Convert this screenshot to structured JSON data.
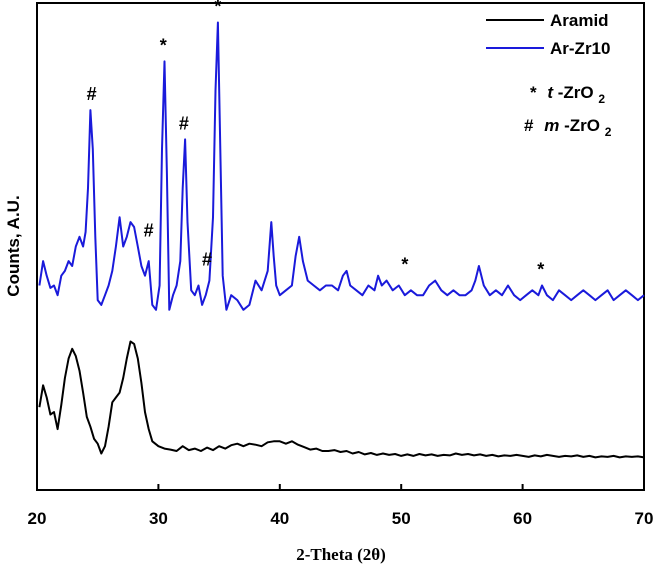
{
  "chart_data": {
    "type": "line",
    "xlabel": "2-Theta (2θ)",
    "ylabel": "Counts, A.U.",
    "xlim": [
      20,
      70
    ],
    "xticks": [
      "20",
      "30",
      "40",
      "50",
      "60",
      "70"
    ],
    "ylim": [
      0,
      1
    ],
    "y_ticks_shown": false,
    "grid": false,
    "legend_position": "top-right",
    "colors": {
      "Aramid": "#000000",
      "Ar-Zr10": "#1a1adb"
    },
    "legend": [
      {
        "kind": "line",
        "name": "Aramid",
        "color": "#000000"
      },
      {
        "kind": "line",
        "name": "Ar-Zr10",
        "color": "#1a1adb"
      },
      {
        "kind": "text",
        "symbol": "*",
        "phase_prefix": "t",
        "phase_text": "-ZrO",
        "phase_sub": "2"
      },
      {
        "kind": "text",
        "symbol": "#",
        "phase_prefix": "m",
        "phase_text": "-ZrO",
        "phase_sub": "2"
      }
    ],
    "series": [
      {
        "name": "Aramid",
        "x": [
          20.2,
          20.5,
          20.8,
          21.1,
          21.4,
          21.7,
          22.0,
          22.3,
          22.6,
          22.9,
          23.2,
          23.5,
          23.8,
          24.1,
          24.4,
          24.7,
          25.0,
          25.3,
          25.6,
          25.9,
          26.2,
          26.5,
          26.8,
          27.1,
          27.4,
          27.7,
          28.0,
          28.3,
          28.6,
          28.9,
          29.2,
          29.5,
          30.0,
          30.5,
          31.0,
          31.5,
          32.0,
          32.5,
          33.0,
          33.5,
          34.0,
          34.5,
          35.0,
          35.5,
          36.0,
          36.5,
          37.0,
          37.5,
          38.0,
          38.5,
          39.0,
          39.5,
          40.0,
          40.5,
          41.0,
          41.5,
          42.0,
          42.5,
          43.0,
          43.5,
          44.0,
          44.5,
          45.0,
          45.5,
          46.0,
          46.5,
          47.0,
          47.5,
          48.0,
          48.5,
          49.0,
          49.5,
          50.0,
          50.5,
          51.0,
          51.5,
          52.0,
          52.5,
          53.0,
          53.5,
          54.0,
          54.5,
          55.0,
          55.5,
          56.0,
          56.5,
          57.0,
          57.5,
          58.0,
          58.5,
          59.0,
          59.5,
          60.0,
          60.5,
          61.0,
          61.5,
          62.0,
          62.5,
          63.0,
          63.5,
          64.0,
          64.5,
          65.0,
          65.5,
          66.0,
          66.5,
          67.0,
          67.5,
          68.0,
          68.5,
          69.0,
          69.5,
          70.0
        ],
        "y": [
          0.17,
          0.215,
          0.19,
          0.155,
          0.16,
          0.125,
          0.175,
          0.23,
          0.27,
          0.29,
          0.275,
          0.245,
          0.2,
          0.15,
          0.13,
          0.105,
          0.095,
          0.075,
          0.09,
          0.13,
          0.18,
          0.19,
          0.2,
          0.23,
          0.27,
          0.305,
          0.3,
          0.27,
          0.22,
          0.16,
          0.125,
          0.1,
          0.09,
          0.085,
          0.083,
          0.08,
          0.09,
          0.082,
          0.085,
          0.08,
          0.087,
          0.082,
          0.09,
          0.085,
          0.092,
          0.095,
          0.09,
          0.095,
          0.093,
          0.09,
          0.098,
          0.1,
          0.1,
          0.095,
          0.1,
          0.093,
          0.088,
          0.083,
          0.085,
          0.08,
          0.08,
          0.082,
          0.078,
          0.08,
          0.075,
          0.078,
          0.073,
          0.076,
          0.072,
          0.075,
          0.072,
          0.074,
          0.07,
          0.073,
          0.07,
          0.074,
          0.071,
          0.073,
          0.07,
          0.072,
          0.071,
          0.075,
          0.072,
          0.074,
          0.071,
          0.073,
          0.07,
          0.072,
          0.069,
          0.071,
          0.07,
          0.072,
          0.07,
          0.068,
          0.071,
          0.069,
          0.072,
          0.07,
          0.068,
          0.07,
          0.069,
          0.071,
          0.068,
          0.07,
          0.067,
          0.069,
          0.068,
          0.07,
          0.067,
          0.069,
          0.068,
          0.069,
          0.067
        ]
      },
      {
        "name": "Ar-Zr10",
        "x": [
          20.2,
          20.5,
          20.8,
          21.1,
          21.4,
          21.7,
          22.0,
          22.3,
          22.6,
          22.9,
          23.2,
          23.5,
          23.8,
          24.0,
          24.2,
          24.4,
          24.6,
          24.8,
          25.0,
          25.3,
          25.6,
          25.9,
          26.2,
          26.5,
          26.8,
          27.1,
          27.4,
          27.7,
          28.0,
          28.3,
          28.6,
          28.9,
          29.2,
          29.5,
          29.8,
          30.1,
          30.3,
          30.5,
          30.7,
          30.9,
          31.2,
          31.5,
          31.8,
          32.0,
          32.2,
          32.4,
          32.7,
          33.0,
          33.3,
          33.6,
          33.9,
          34.2,
          34.5,
          34.7,
          34.9,
          35.1,
          35.3,
          35.6,
          36.0,
          36.5,
          37.0,
          37.5,
          38.0,
          38.5,
          39.0,
          39.3,
          39.5,
          39.7,
          40.0,
          40.5,
          41.0,
          41.3,
          41.6,
          41.9,
          42.3,
          42.8,
          43.3,
          43.8,
          44.3,
          44.8,
          45.2,
          45.5,
          45.8,
          46.3,
          46.8,
          47.3,
          47.8,
          48.1,
          48.4,
          48.8,
          49.3,
          49.8,
          50.3,
          50.8,
          51.3,
          51.8,
          52.3,
          52.8,
          53.3,
          53.8,
          54.3,
          54.8,
          55.3,
          55.8,
          56.1,
          56.4,
          56.8,
          57.3,
          57.8,
          58.3,
          58.8,
          59.3,
          59.8,
          60.3,
          60.8,
          61.3,
          61.6,
          62.0,
          62.5,
          63.0,
          63.5,
          64.0,
          64.5,
          65.0,
          65.5,
          66.0,
          66.5,
          67.0,
          67.5,
          68.0,
          68.5,
          69.0,
          69.5,
          70.0
        ],
        "y": [
          0.42,
          0.47,
          0.44,
          0.415,
          0.42,
          0.4,
          0.44,
          0.45,
          0.47,
          0.46,
          0.5,
          0.52,
          0.5,
          0.53,
          0.62,
          0.78,
          0.7,
          0.52,
          0.39,
          0.38,
          0.4,
          0.42,
          0.45,
          0.5,
          0.56,
          0.5,
          0.52,
          0.55,
          0.54,
          0.5,
          0.46,
          0.44,
          0.47,
          0.38,
          0.37,
          0.42,
          0.7,
          0.88,
          0.65,
          0.37,
          0.4,
          0.42,
          0.47,
          0.62,
          0.72,
          0.55,
          0.41,
          0.4,
          0.42,
          0.38,
          0.4,
          0.43,
          0.56,
          0.82,
          0.96,
          0.7,
          0.44,
          0.37,
          0.4,
          0.39,
          0.37,
          0.38,
          0.43,
          0.41,
          0.45,
          0.55,
          0.48,
          0.42,
          0.4,
          0.41,
          0.42,
          0.48,
          0.52,
          0.47,
          0.43,
          0.42,
          0.41,
          0.42,
          0.42,
          0.41,
          0.44,
          0.45,
          0.42,
          0.41,
          0.4,
          0.42,
          0.41,
          0.44,
          0.42,
          0.43,
          0.41,
          0.42,
          0.4,
          0.41,
          0.4,
          0.4,
          0.42,
          0.43,
          0.41,
          0.4,
          0.41,
          0.4,
          0.4,
          0.41,
          0.43,
          0.46,
          0.42,
          0.4,
          0.41,
          0.4,
          0.42,
          0.4,
          0.39,
          0.4,
          0.41,
          0.4,
          0.42,
          0.4,
          0.39,
          0.41,
          0.4,
          0.39,
          0.4,
          0.41,
          0.4,
          0.39,
          0.4,
          0.41,
          0.39,
          0.4,
          0.41,
          0.4,
          0.39,
          0.4
        ]
      }
    ],
    "annotations": [
      {
        "text": "#",
        "x": 24.5,
        "y": 0.78
      },
      {
        "text": "*",
        "x": 30.4,
        "y": 0.88
      },
      {
        "text": "#",
        "x": 32.1,
        "y": 0.72
      },
      {
        "text": "*",
        "x": 34.9,
        "y": 0.96
      },
      {
        "text": "#",
        "x": 29.2,
        "y": 0.5
      },
      {
        "text": "#",
        "x": 34.0,
        "y": 0.44
      },
      {
        "text": "*",
        "x": 50.3,
        "y": 0.43
      },
      {
        "text": "*",
        "x": 61.5,
        "y": 0.42
      }
    ]
  }
}
